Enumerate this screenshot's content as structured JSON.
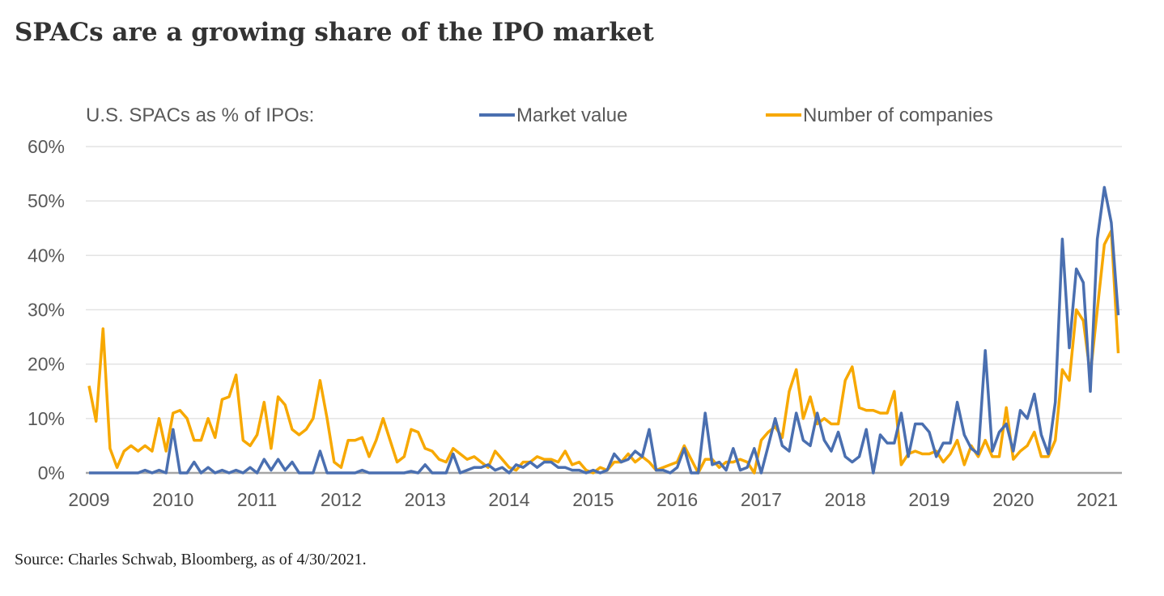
{
  "title": "SPACs are a growing share of the IPO market",
  "source": "Source: Charles Schwab, Bloomberg, as of 4/30/2021.",
  "chart_data": {
    "type": "line",
    "title": "",
    "legend_prefix": "U.S. SPACs as % of IPOs:",
    "legend_position": "top",
    "x_start": "2009-01",
    "x_frequency": "monthly",
    "x_end": "2021-04",
    "x_tick_labels": [
      "2009",
      "2010",
      "2011",
      "2012",
      "2013",
      "2014",
      "2015",
      "2016",
      "2017",
      "2018",
      "2019",
      "2020",
      "2021"
    ],
    "y_tick_labels": [
      "0%",
      "10%",
      "20%",
      "30%",
      "40%",
      "50%",
      "60%"
    ],
    "ylim": [
      0,
      60
    ],
    "y_unit": "%",
    "grid": "horizontal",
    "series": [
      {
        "name": "Market value",
        "color": "#4a6fb0",
        "values": [
          0,
          0,
          0,
          0,
          0,
          0,
          0,
          0,
          0.5,
          0,
          0.5,
          0,
          8,
          0,
          0,
          2,
          0,
          1,
          0,
          0.5,
          0,
          0.5,
          0,
          1,
          0,
          2.5,
          0.5,
          2.5,
          0.5,
          2,
          0,
          0,
          0,
          4,
          0,
          0,
          0,
          0,
          0,
          0.5,
          0,
          0,
          0,
          0,
          0,
          0,
          0.3,
          0,
          1.5,
          0,
          0,
          0,
          3.5,
          0,
          0.5,
          1,
          1,
          1.5,
          0.5,
          1,
          0,
          1.5,
          1,
          2,
          1,
          2,
          2,
          1,
          1,
          0.5,
          0.5,
          0,
          0.5,
          0,
          0.5,
          3.5,
          2,
          2.5,
          4,
          3,
          8,
          0.5,
          0.5,
          0,
          1,
          4.5,
          0,
          0,
          11,
          1.5,
          2,
          0.5,
          4.5,
          0.5,
          1,
          4.5,
          0,
          5,
          10,
          5,
          4,
          11,
          6,
          5,
          11,
          6,
          4,
          7.5,
          3,
          2,
          3,
          8,
          0,
          7,
          5.5,
          5.5,
          11,
          3,
          9,
          9,
          7.5,
          3,
          5.5,
          5.5,
          13,
          7,
          4.5,
          3.5,
          22.5,
          4,
          7.5,
          9,
          4,
          11.5,
          10,
          14.5,
          7,
          3.5,
          13,
          43,
          23,
          37.5,
          35,
          15,
          43,
          52.5,
          46,
          29
        ]
      },
      {
        "name": "Number of companies",
        "color": "#f7a800",
        "values": [
          16,
          9.5,
          26.5,
          4.5,
          1,
          4,
          5,
          4,
          5,
          4,
          10,
          4,
          11,
          11.5,
          10,
          6,
          6,
          10,
          6.5,
          13.5,
          14,
          18,
          6,
          5,
          7,
          13,
          4.5,
          14,
          12.5,
          8,
          7,
          8,
          10,
          17,
          10,
          2,
          1,
          6,
          6,
          6.5,
          3,
          6,
          10,
          6,
          2,
          3,
          8,
          7.5,
          4.5,
          4,
          2.5,
          2,
          4.5,
          3.5,
          2.5,
          3,
          2,
          1,
          4,
          2.5,
          1,
          0.5,
          2,
          2,
          3,
          2.5,
          2.5,
          2,
          4,
          1.5,
          2,
          0.5,
          0,
          1,
          0.5,
          2,
          2,
          3.5,
          2,
          3,
          2,
          0.5,
          1,
          1.5,
          2,
          5,
          2.5,
          0,
          2.5,
          2.5,
          1,
          2,
          2,
          2.5,
          2,
          0,
          6,
          7.5,
          8.5,
          6.5,
          15,
          19,
          10,
          14,
          9,
          10,
          9,
          9,
          17,
          19.5,
          12,
          11.5,
          11.5,
          11,
          11,
          15,
          1.5,
          3.5,
          4,
          3.5,
          3.5,
          4,
          2,
          3.5,
          6,
          1.5,
          5,
          3,
          6,
          3,
          3,
          12,
          2.5,
          4,
          5,
          7.5,
          3,
          3,
          6,
          19,
          17,
          30,
          28,
          18,
          30,
          42,
          44.5,
          22
        ]
      }
    ]
  }
}
